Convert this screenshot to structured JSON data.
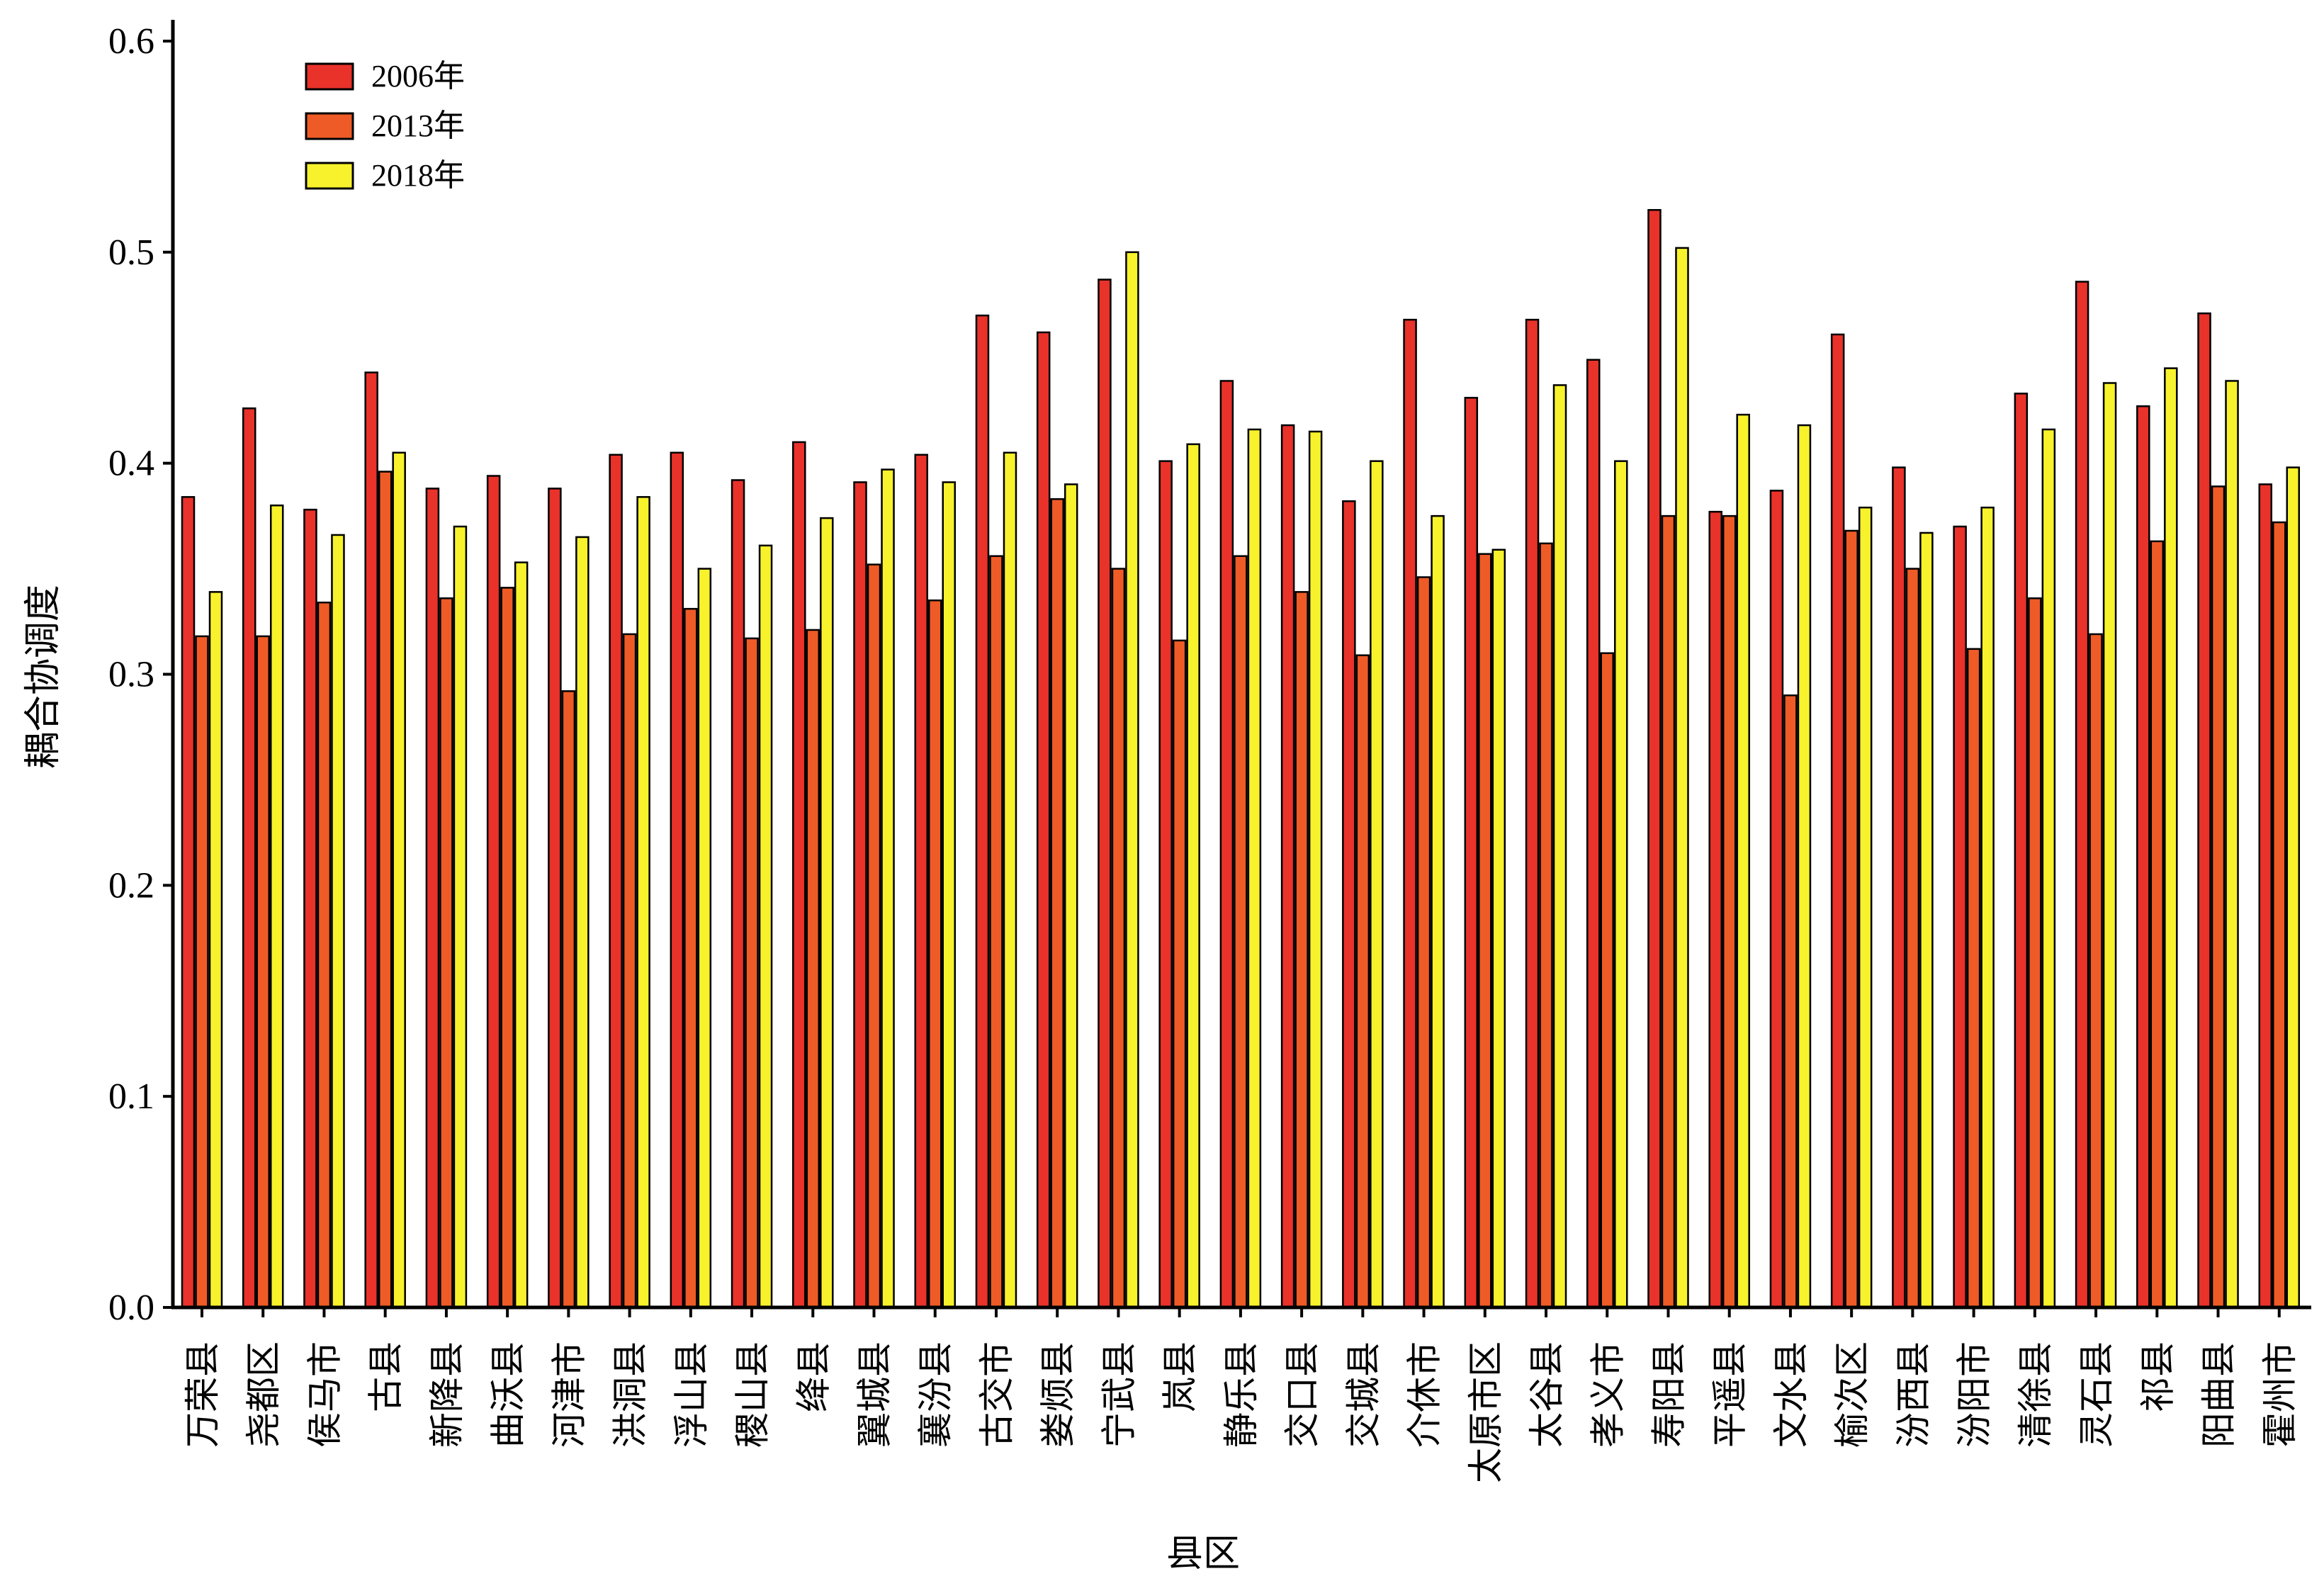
{
  "chart_data": {
    "type": "bar",
    "xlabel": "县区",
    "ylabel": "耦合协调度",
    "ylim": [
      0,
      0.6
    ],
    "yticks": [
      "0.0",
      "0.1",
      "0.2",
      "0.3",
      "0.4",
      "0.5",
      "0.6"
    ],
    "legend_position": "top-left",
    "grid": false,
    "categories": [
      "万荣县",
      "尧都区",
      "侯马市",
      "古县",
      "新降县",
      "曲沃县",
      "河津市",
      "洪洞县",
      "浮山县",
      "稷山县",
      "绛县",
      "翼城县",
      "襄汾县",
      "古交市",
      "娄烦县",
      "宁武县",
      "岚县",
      "静乐县",
      "交口县",
      "交城县",
      "介休市",
      "太原市区",
      "太谷县",
      "孝义市",
      "寿阳县",
      "平遥县",
      "文水县",
      "榆次区",
      "汾西县",
      "汾阳市",
      "清徐县",
      "灵石县",
      "祁县",
      "阳曲县",
      "霍州市"
    ],
    "series": [
      {
        "name": "2006年",
        "color": "#e8322a",
        "values": [
          0.384,
          0.426,
          0.378,
          0.443,
          0.388,
          0.394,
          0.388,
          0.404,
          0.405,
          0.392,
          0.41,
          0.391,
          0.404,
          0.47,
          0.462,
          0.487,
          0.401,
          0.439,
          0.418,
          0.382,
          0.468,
          0.431,
          0.468,
          0.449,
          0.52,
          0.377,
          0.387,
          0.461,
          0.398,
          0.37,
          0.433,
          0.486,
          0.427,
          0.471,
          0.39
        ]
      },
      {
        "name": "2013年",
        "color": "#ef5b26",
        "values": [
          0.318,
          0.318,
          0.334,
          0.396,
          0.336,
          0.341,
          0.292,
          0.319,
          0.331,
          0.317,
          0.321,
          0.352,
          0.335,
          0.356,
          0.383,
          0.35,
          0.316,
          0.356,
          0.339,
          0.309,
          0.346,
          0.357,
          0.362,
          0.31,
          0.375,
          0.375,
          0.29,
          0.368,
          0.35,
          0.312,
          0.336,
          0.319,
          0.363,
          0.389,
          0.372
        ]
      },
      {
        "name": "2018年",
        "color": "#f7f22c",
        "values": [
          0.339,
          0.38,
          0.366,
          0.405,
          0.37,
          0.353,
          0.365,
          0.384,
          0.35,
          0.361,
          0.374,
          0.397,
          0.391,
          0.405,
          0.39,
          0.5,
          0.409,
          0.416,
          0.415,
          0.401,
          0.375,
          0.359,
          0.437,
          0.401,
          0.502,
          0.423,
          0.418,
          0.379,
          0.367,
          0.379,
          0.416,
          0.438,
          0.445,
          0.439,
          0.398
        ]
      }
    ]
  }
}
